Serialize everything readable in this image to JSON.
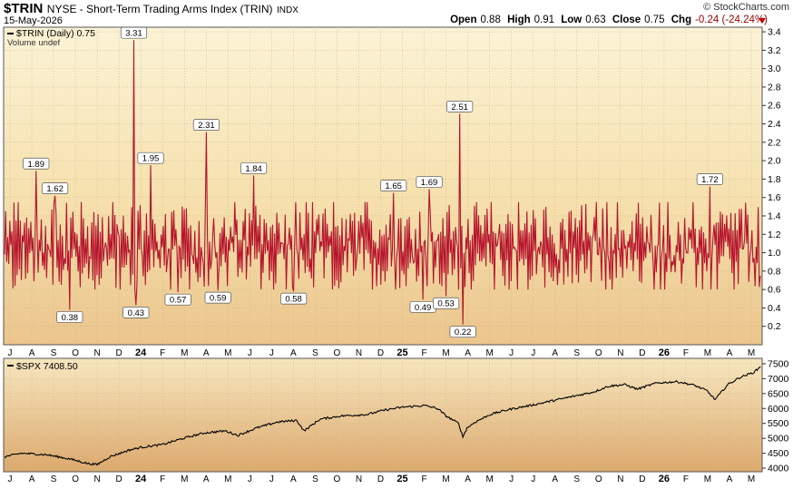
{
  "header": {
    "symbol": "$TRIN",
    "description": "NYSE - Short-Term Trading Arms Index (TRIN)",
    "exchange": "INDX",
    "date": "15-May-2026",
    "copyright": "© StockCharts.com",
    "open_label": "Open",
    "open": "0.88",
    "high_label": "High",
    "high": "0.91",
    "low_label": "Low",
    "low": "0.63",
    "close_label": "Close",
    "close": "0.75",
    "chg_label": "Chg",
    "chg": "-0.24 (-24.24%)"
  },
  "colors": {
    "panel_top": "#fbf3d6",
    "panel_bottom": "#e3b376",
    "trin_line": "#b5142c",
    "spx_line": "#000000"
  },
  "chart_data": [
    {
      "type": "line",
      "legend_label": "$TRIN (Daily) 0.75",
      "volume_label": "Volume undef",
      "ylim": [
        0,
        3.45
      ],
      "yticks": [
        0.2,
        0.4,
        0.6,
        0.8,
        1.0,
        1.2,
        1.4,
        1.6,
        1.8,
        2.0,
        2.2,
        2.4,
        2.6,
        2.8,
        3.0,
        3.2,
        3.4
      ],
      "ytick_labels": [
        "0.2",
        "0.4",
        "0.6",
        "0.8",
        "1.0",
        "1.2",
        "1.4",
        "1.6",
        "1.8",
        "2.0",
        "2.2",
        "2.4",
        "2.6",
        "2.8",
        "3.0",
        "3.2",
        "3.4"
      ],
      "x_ticks": [
        "J",
        "A",
        "S",
        "O",
        "N",
        "D",
        "24",
        "F",
        "M",
        "A",
        "M",
        "J",
        "J",
        "A",
        "S",
        "O",
        "N",
        "D",
        "25",
        "F",
        "M",
        "A",
        "M",
        "J",
        "J",
        "A",
        "S",
        "O",
        "N",
        "D",
        "26",
        "F",
        "M",
        "A",
        "M"
      ],
      "n_points": 720,
      "last_value": 0.75,
      "annotations": [
        {
          "index": 30,
          "value": 1.89,
          "label": "1.89"
        },
        {
          "index": 48,
          "value": 1.62,
          "label": "1.62"
        },
        {
          "index": 62,
          "value": 0.38,
          "label": "0.38"
        },
        {
          "index": 123,
          "value": 3.31,
          "label": "3.31"
        },
        {
          "index": 125,
          "value": 0.43,
          "label": "0.43"
        },
        {
          "index": 139,
          "value": 1.95,
          "label": "1.95"
        },
        {
          "index": 165,
          "value": 0.57,
          "label": "0.57"
        },
        {
          "index": 192,
          "value": 2.31,
          "label": "2.31"
        },
        {
          "index": 203,
          "value": 0.59,
          "label": "0.59"
        },
        {
          "index": 237,
          "value": 1.84,
          "label": "1.84"
        },
        {
          "index": 275,
          "value": 0.58,
          "label": "0.58"
        },
        {
          "index": 370,
          "value": 1.65,
          "label": "1.65"
        },
        {
          "index": 398,
          "value": 0.49,
          "label": "0.49"
        },
        {
          "index": 404,
          "value": 1.69,
          "label": "1.69"
        },
        {
          "index": 420,
          "value": 0.53,
          "label": "0.53"
        },
        {
          "index": 433,
          "value": 2.51,
          "label": "2.51"
        },
        {
          "index": 436,
          "value": 0.22,
          "label": "0.22"
        },
        {
          "index": 671,
          "value": 1.72,
          "label": "1.72"
        }
      ]
    },
    {
      "type": "line",
      "legend_label": "$SPX 7408.50",
      "ylim": [
        3880,
        7680
      ],
      "yticks": [
        4000,
        4500,
        5000,
        5500,
        6000,
        6500,
        7000,
        7500
      ],
      "ytick_labels": [
        "4000",
        "4500",
        "5000",
        "5500",
        "6000",
        "6500",
        "7000",
        "7500"
      ],
      "x_ticks": [
        "J",
        "A",
        "S",
        "O",
        "N",
        "D",
        "24",
        "F",
        "M",
        "A",
        "M",
        "J",
        "J",
        "A",
        "S",
        "O",
        "N",
        "D",
        "25",
        "F",
        "M",
        "A",
        "M",
        "J",
        "J",
        "A",
        "S",
        "O",
        "N",
        "D",
        "26",
        "F",
        "M",
        "A",
        "M"
      ],
      "n_points": 720,
      "last_value": 7408.5,
      "anchors": [
        [
          0,
          4380
        ],
        [
          16,
          4500
        ],
        [
          40,
          4450
        ],
        [
          62,
          4310
        ],
        [
          80,
          4150
        ],
        [
          88,
          4120
        ],
        [
          100,
          4380
        ],
        [
          118,
          4600
        ],
        [
          130,
          4700
        ],
        [
          150,
          4790
        ],
        [
          170,
          5000
        ],
        [
          190,
          5180
        ],
        [
          210,
          5250
        ],
        [
          222,
          5100
        ],
        [
          240,
          5350
        ],
        [
          260,
          5550
        ],
        [
          278,
          5600
        ],
        [
          285,
          5250
        ],
        [
          300,
          5640
        ],
        [
          320,
          5750
        ],
        [
          345,
          5800
        ],
        [
          362,
          5950
        ],
        [
          380,
          6050
        ],
        [
          400,
          6100
        ],
        [
          412,
          6000
        ],
        [
          420,
          5750
        ],
        [
          432,
          5500
        ],
        [
          436,
          5050
        ],
        [
          440,
          5350
        ],
        [
          448,
          5550
        ],
        [
          462,
          5800
        ],
        [
          480,
          5970
        ],
        [
          500,
          6100
        ],
        [
          520,
          6250
        ],
        [
          540,
          6400
        ],
        [
          560,
          6550
        ],
        [
          575,
          6750
        ],
        [
          590,
          6800
        ],
        [
          602,
          6650
        ],
        [
          620,
          6850
        ],
        [
          640,
          6900
        ],
        [
          656,
          6780
        ],
        [
          668,
          6600
        ],
        [
          676,
          6300
        ],
        [
          688,
          6800
        ],
        [
          700,
          7050
        ],
        [
          712,
          7200
        ],
        [
          720,
          7408.5
        ]
      ]
    }
  ]
}
